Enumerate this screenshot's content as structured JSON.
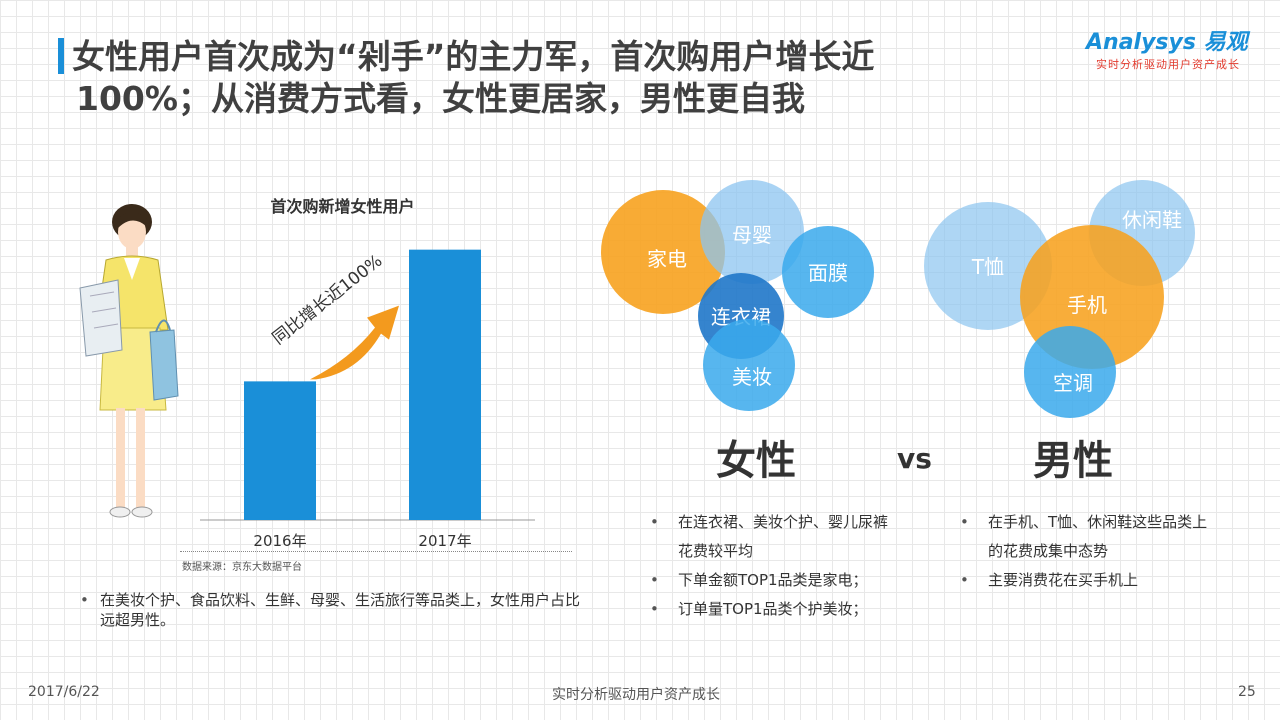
{
  "header": {
    "title_line1": "女性用户首次成为“剁手”的主力军，首次购用户增长近",
    "title_line2": "100%；从消费方式看，女性更居家，男性更自我",
    "logo_main": "Analysys 易观",
    "logo_sub": "实时分析驱动用户资产成长"
  },
  "colors": {
    "accent": "#1a8fd8",
    "bar": "#1a8fd8",
    "arrow": "#f39a1e",
    "orange": "#f7a21f",
    "blue_light": "#8cc4f0",
    "blue_mid": "#3aa9ec",
    "blue_dark": "#1f77c9"
  },
  "chart_data": {
    "type": "bar",
    "title": "首次购新增女性用户",
    "categories": [
      "2016年",
      "2017年"
    ],
    "values": [
      1.0,
      1.95
    ],
    "ylim": [
      0,
      2.2
    ],
    "annotation": "同比增长近100%",
    "source": "数据来源：京东大数据平台",
    "grid": false
  },
  "left_bullets": [
    "在美妆个护、食品饮料、生鲜、母婴、生活旅行等品类上，女性用户占比远超男性。"
  ],
  "female": {
    "label": "女性",
    "circles": [
      {
        "text": "家电",
        "tone": "orange"
      },
      {
        "text": "母婴",
        "tone": "blue_light"
      },
      {
        "text": "面膜",
        "tone": "blue_mid"
      },
      {
        "text": "连衣裙",
        "tone": "blue_dark"
      },
      {
        "text": "美妆",
        "tone": "blue_mid"
      }
    ],
    "bullets": [
      "在连衣裙、美妆个护、婴儿尿裤花费较平均",
      "下单金额TOP1品类是家电；",
      "订单量TOP1品类个护美妆；"
    ]
  },
  "vs": "vs",
  "male": {
    "label": "男性",
    "circles": [
      {
        "text": "T恤",
        "tone": "blue_light"
      },
      {
        "text": "休闲鞋",
        "tone": "blue_light"
      },
      {
        "text": "手机",
        "tone": "orange"
      },
      {
        "text": "空调",
        "tone": "blue_mid"
      }
    ],
    "bullets": [
      "在手机、T恤、休闲鞋这些品类上的花费成集中态势",
      "主要消费花在买手机上"
    ]
  },
  "footer": {
    "date": "2017/6/22",
    "center": "实时分析驱动用户资产成长",
    "page": "25"
  }
}
